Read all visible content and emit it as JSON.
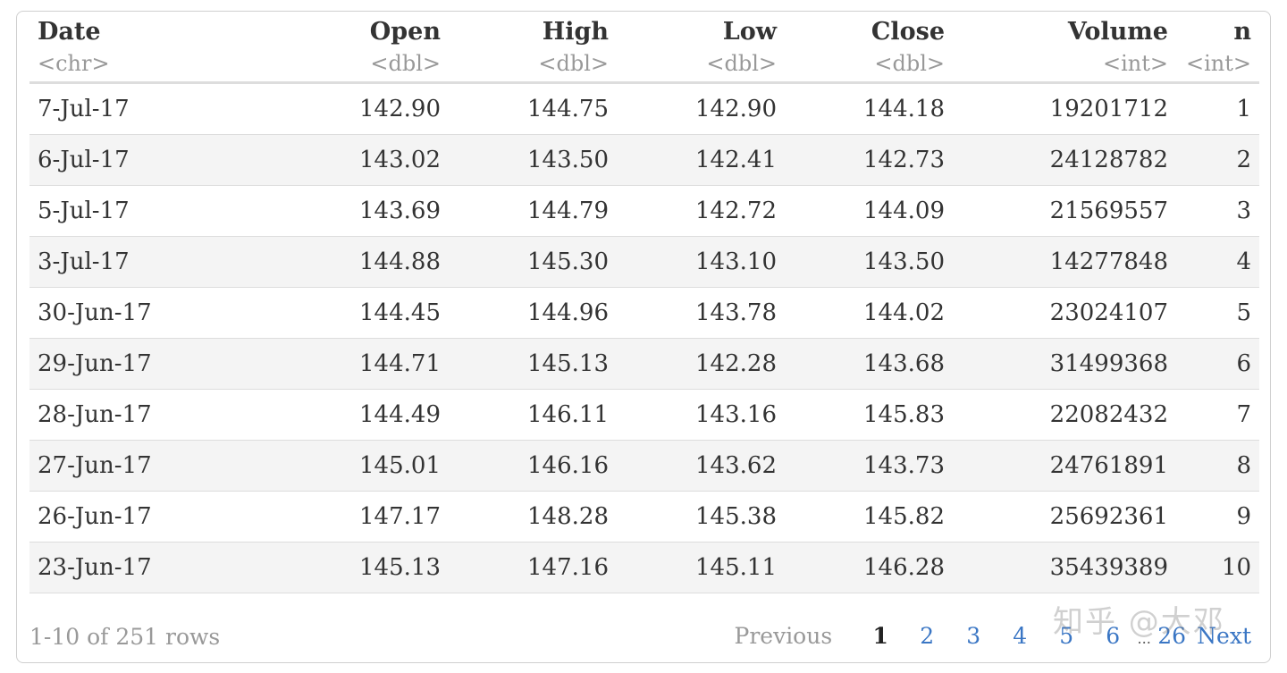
{
  "table": {
    "columns": [
      {
        "name": "Date",
        "type": "<chr>"
      },
      {
        "name": "Open",
        "type": "<dbl>"
      },
      {
        "name": "High",
        "type": "<dbl>"
      },
      {
        "name": "Low",
        "type": "<dbl>"
      },
      {
        "name": "Close",
        "type": "<dbl>"
      },
      {
        "name": "Volume",
        "type": "<int>"
      },
      {
        "name": "n",
        "type": "<int>"
      }
    ],
    "rows": [
      [
        "7-Jul-17",
        "142.90",
        "144.75",
        "142.90",
        "144.18",
        "19201712",
        "1"
      ],
      [
        "6-Jul-17",
        "143.02",
        "143.50",
        "142.41",
        "142.73",
        "24128782",
        "2"
      ],
      [
        "5-Jul-17",
        "143.69",
        "144.79",
        "142.72",
        "144.09",
        "21569557",
        "3"
      ],
      [
        "3-Jul-17",
        "144.88",
        "145.30",
        "143.10",
        "143.50",
        "14277848",
        "4"
      ],
      [
        "30-Jun-17",
        "144.45",
        "144.96",
        "143.78",
        "144.02",
        "23024107",
        "5"
      ],
      [
        "29-Jun-17",
        "144.71",
        "145.13",
        "142.28",
        "143.68",
        "31499368",
        "6"
      ],
      [
        "28-Jun-17",
        "144.49",
        "146.11",
        "143.16",
        "145.83",
        "22082432",
        "7"
      ],
      [
        "27-Jun-17",
        "145.01",
        "146.16",
        "143.62",
        "143.73",
        "24761891",
        "8"
      ],
      [
        "26-Jun-17",
        "147.17",
        "148.28",
        "145.38",
        "145.82",
        "25692361",
        "9"
      ],
      [
        "23-Jun-17",
        "145.13",
        "147.16",
        "145.11",
        "146.28",
        "35439389",
        "10"
      ]
    ]
  },
  "footer": {
    "rows_info": "1-10 of 251 rows",
    "previous_label": "Previous",
    "pages": [
      "1",
      "2",
      "3",
      "4",
      "5",
      "6"
    ],
    "current_page": "1",
    "ellipsis": "...",
    "last_page": "26",
    "next_label": "Next"
  },
  "watermark": "知乎 @大邓",
  "colors": {
    "link": "#3a76c4",
    "muted": "#999999",
    "text": "#333333",
    "stripe": "#f4f4f4"
  }
}
